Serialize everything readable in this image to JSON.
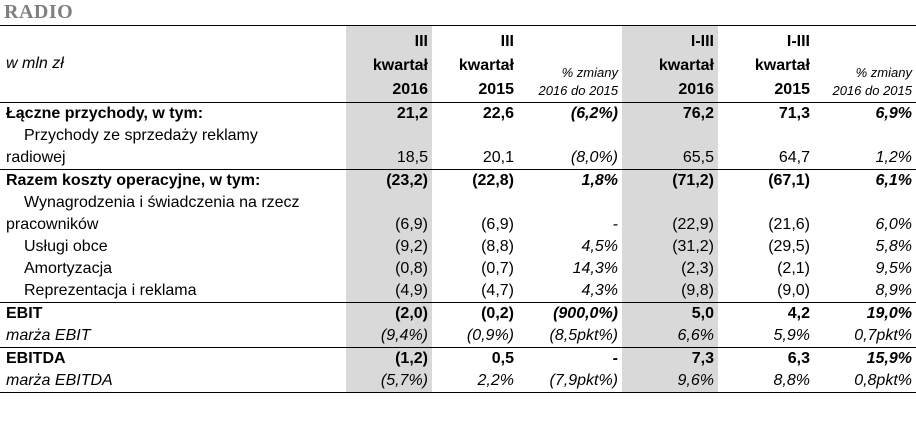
{
  "section_title": "RADIO",
  "header": {
    "unit": "w mln zł",
    "columns": [
      {
        "l1": "III",
        "l2": "kwartał",
        "l3": "2016"
      },
      {
        "l1": "III",
        "l2": "kwartał",
        "l3": "2015"
      },
      {
        "l1": "% zmiany",
        "l2": "2016 do 2015"
      },
      {
        "l1": "I-III",
        "l2": "kwartał",
        "l3": "2016"
      },
      {
        "l1": "I-III",
        "l2": "kwartał",
        "l3": "2015"
      },
      {
        "l1": "% zmiany",
        "l2": "2016 do 2015"
      }
    ]
  },
  "rows": [
    {
      "label": "Łączne przychody, w tym:",
      "values": [
        "21,2",
        "22,6",
        "(6,2%)",
        "76,2",
        "71,3",
        "6,9%"
      ]
    },
    {
      "label_l1": "Przychody ze sprzedaży reklamy",
      "label_l2": "radiowej",
      "values": [
        "18,5",
        "20,1",
        "(8,0%)",
        "65,5",
        "64,7",
        "1,2%"
      ]
    },
    {
      "label": "Razem koszty operacyjne, w tym:",
      "values": [
        "(23,2)",
        "(22,8)",
        "1,8%",
        "(71,2)",
        "(67,1)",
        "6,1%"
      ]
    },
    {
      "label_l1": "Wynagrodzenia i świadczenia na rzecz",
      "label_l2": "pracowników",
      "values": [
        "(6,9)",
        "(6,9)",
        "-",
        "(22,9)",
        "(21,6)",
        "6,0%"
      ]
    },
    {
      "label": "Usługi obce",
      "values": [
        "(9,2)",
        "(8,8)",
        "4,5%",
        "(31,2)",
        "(29,5)",
        "5,8%"
      ]
    },
    {
      "label": "Amortyzacja",
      "values": [
        "(0,8)",
        "(0,7)",
        "14,3%",
        "(2,3)",
        "(2,1)",
        "9,5%"
      ]
    },
    {
      "label": "Reprezentacja i reklama",
      "values": [
        "(4,9)",
        "(4,7)",
        "4,3%",
        "(9,8)",
        "(9,0)",
        "8,9%"
      ]
    },
    {
      "label": "EBIT",
      "values": [
        "(2,0)",
        "(0,2)",
        "(900,0%)",
        "5,0",
        "4,2",
        "19,0%"
      ]
    },
    {
      "label": "marża EBIT",
      "values": [
        "(9,4%)",
        "(0,9%)",
        "(8,5pkt%)",
        "6,6%",
        "5,9%",
        "0,7pkt%"
      ]
    },
    {
      "label": "EBITDA",
      "values": [
        "(1,2)",
        "0,5",
        "-",
        "7,3",
        "6,3",
        "15,9%"
      ]
    },
    {
      "label": "marża EBITDA",
      "values": [
        "(5,7%)",
        "2,2%",
        "(7,9pkt%)",
        "9,6%",
        "8,8%",
        "0,8pkt%"
      ]
    }
  ]
}
